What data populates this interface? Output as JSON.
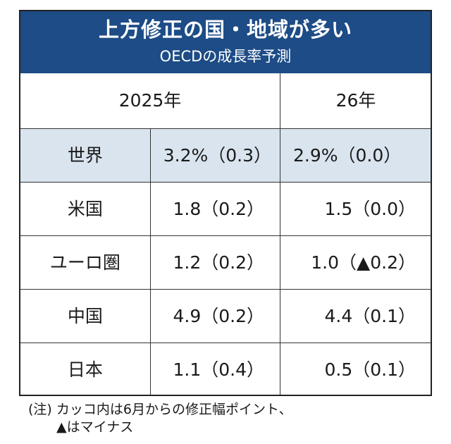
{
  "header": {
    "title": "上方修正の国・地域が多い",
    "subtitle": "OECDの成長率予測"
  },
  "columns": {
    "year_2025": "2025年",
    "year_2026": "26年"
  },
  "rows": [
    {
      "region": "世界",
      "v2025": "3.2%（0.3）",
      "v2026": "2.9%（0.0）"
    },
    {
      "region": "米国",
      "v2025": "1.8（0.2）",
      "v2026": "1.5（0.0）"
    },
    {
      "region": "ユーロ圏",
      "v2025": "1.2（0.2）",
      "v2026": "1.0（▲0.2）"
    },
    {
      "region": "中国",
      "v2025": "4.9（0.2）",
      "v2026": "4.4（0.1）"
    },
    {
      "region": "日本",
      "v2025": "1.1（0.4）",
      "v2026": "0.5（0.1）"
    }
  ],
  "colors": {
    "header_bg": "#1d4c86",
    "highlight_row_bg": "#d9e4ee"
  },
  "note": {
    "line1": "(注) カッコ内は6月からの修正幅ポイント、",
    "line2": "▲はマイナス"
  }
}
